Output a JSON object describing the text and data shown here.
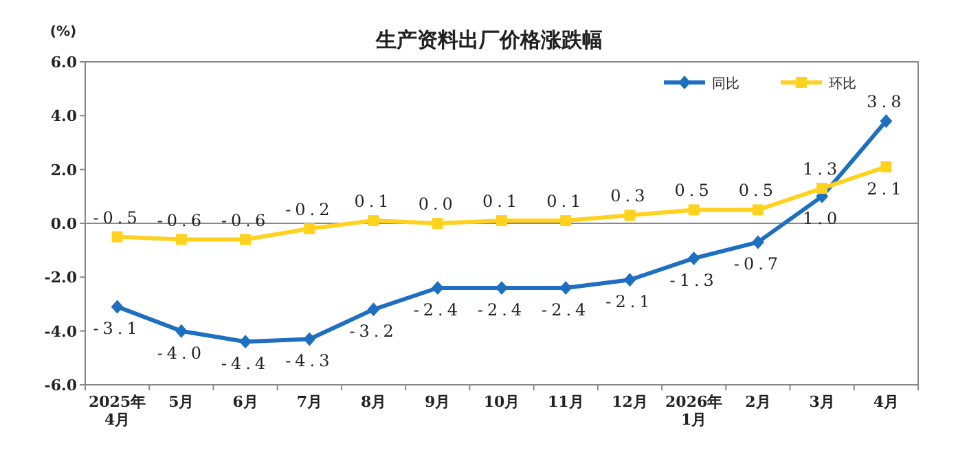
{
  "chart_data": {
    "type": "line",
    "title": "生产资料出厂价格涨跌幅",
    "ylabel": "(%)",
    "categories": [
      "2025年4月",
      "5月",
      "6月",
      "7月",
      "8月",
      "9月",
      "10月",
      "11月",
      "12月",
      "2026年1月",
      "2月",
      "3月",
      "4月"
    ],
    "series": [
      {
        "name": "同比",
        "color": "#1f6fc0",
        "marker": "diamond",
        "values": [
          -3.1,
          -4.0,
          -4.4,
          -4.3,
          -3.2,
          -2.4,
          -2.4,
          -2.4,
          -2.1,
          -1.3,
          -0.7,
          1.0,
          3.8
        ],
        "value_labels": [
          "-3.1",
          "-4.0",
          "-4.4",
          "-4.3",
          "-3.2",
          "-2.4",
          "-2.4",
          "-2.4",
          "-2.1",
          "-1.3",
          "-0.7",
          "1.0",
          "3.8"
        ]
      },
      {
        "name": "环比",
        "color": "#ffd21f",
        "marker": "square",
        "values": [
          -0.5,
          -0.6,
          -0.6,
          -0.2,
          0.1,
          0.0,
          0.1,
          0.1,
          0.3,
          0.5,
          0.5,
          1.3,
          2.1
        ],
        "value_labels": [
          "-0.5",
          "-0.6",
          "-0.6",
          "-0.2",
          "0.1",
          "0.0",
          "0.1",
          "0.1",
          "0.3",
          "0.5",
          "0.5",
          "1.3",
          "2.1"
        ]
      }
    ],
    "ylim": [
      -6,
      6
    ],
    "yticks": [
      {
        "value": -6,
        "label": "-6.0"
      },
      {
        "value": -4,
        "label": "-4.0"
      },
      {
        "value": -2,
        "label": "-2.0"
      },
      {
        "value": 0,
        "label": "0.0"
      },
      {
        "value": 2,
        "label": "2.0"
      },
      {
        "value": 4,
        "label": "4.0"
      },
      {
        "value": 6,
        "label": "6.0"
      }
    ],
    "legend": "top right",
    "line_style": "solid"
  }
}
